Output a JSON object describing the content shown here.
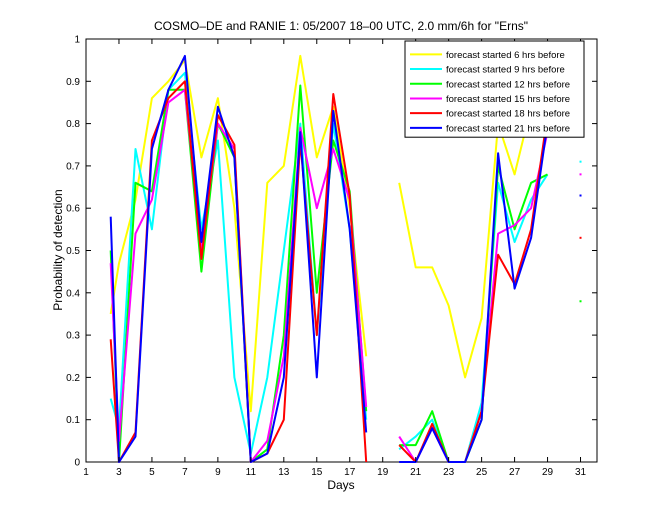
{
  "chart_data": {
    "type": "line",
    "title": "COSMO–DE and RANIE 1: 05/2007 18–00 UTC, 2.0 mm/6h for \"Erns\"",
    "xlabel": "Days",
    "ylabel": "Probability of detection",
    "xlim": [
      1,
      32
    ],
    "ylim": [
      0,
      1
    ],
    "xticks": [
      1,
      3,
      5,
      7,
      9,
      11,
      13,
      15,
      17,
      19,
      21,
      23,
      25,
      27,
      29,
      31
    ],
    "yticks": [
      0,
      0.1,
      0.2,
      0.3,
      0.4,
      0.5,
      0.6,
      0.7,
      0.8,
      0.9,
      1
    ],
    "legend_position": "top-right",
    "series": [
      {
        "name": "forecast started 6 hrs before",
        "color": "#ffff00",
        "x": [
          2.5,
          3,
          4,
          5,
          6,
          7,
          8,
          9,
          10,
          11,
          12,
          13,
          14,
          15,
          16,
          17,
          18,
          null,
          20,
          21,
          22,
          23,
          24,
          25,
          26,
          27,
          28,
          29
        ],
        "y": [
          0.35,
          0.47,
          0.62,
          0.86,
          0.9,
          0.95,
          0.72,
          0.86,
          0.6,
          0.12,
          0.66,
          0.7,
          0.96,
          0.72,
          0.84,
          0.6,
          0.25,
          null,
          0.66,
          0.46,
          0.46,
          0.37,
          0.2,
          0.34,
          0.8,
          0.68,
          0.84,
          0.9
        ],
        "isolated": {
          "x": 31,
          "y": 0.97
        }
      },
      {
        "name": "forecast started 9 hrs before",
        "color": "#00ffff",
        "x": [
          2.5,
          3,
          4,
          5,
          6,
          7,
          8,
          9,
          10,
          11,
          12,
          13,
          14,
          15,
          16,
          17,
          18,
          null,
          20,
          21,
          22,
          23,
          24,
          25,
          26,
          27,
          28,
          29
        ],
        "y": [
          0.15,
          0.08,
          0.74,
          0.55,
          0.88,
          0.92,
          0.55,
          0.76,
          0.2,
          0.02,
          0.2,
          0.5,
          0.8,
          0.3,
          0.8,
          0.55,
          0.1,
          null,
          0.03,
          0.06,
          0.1,
          0.0,
          0.0,
          0.14,
          0.66,
          0.52,
          0.62,
          0.68
        ],
        "isolated": {
          "x": 31,
          "y": 0.71
        }
      },
      {
        "name": "forecast started 12 hrs before",
        "color": "#00ff00",
        "x": [
          2.5,
          3,
          4,
          5,
          6,
          7,
          8,
          9,
          10,
          11,
          12,
          13,
          14,
          15,
          16,
          17,
          18,
          null,
          20,
          21,
          22,
          23,
          24,
          25,
          26,
          27,
          28,
          29
        ],
        "y": [
          0.5,
          0.0,
          0.66,
          0.64,
          0.88,
          0.88,
          0.45,
          0.8,
          0.72,
          0.0,
          0.03,
          0.3,
          0.89,
          0.4,
          0.76,
          0.64,
          0.12,
          null,
          0.04,
          0.04,
          0.12,
          0.0,
          0.0,
          0.1,
          0.7,
          0.55,
          0.66,
          0.68
        ],
        "isolated": {
          "x": 31,
          "y": 0.38
        }
      },
      {
        "name": "forecast started 15 hrs before",
        "color": "#ff00ff",
        "x": [
          2.5,
          3,
          4,
          5,
          6,
          7,
          8,
          9,
          10,
          11,
          12,
          13,
          14,
          15,
          16,
          17,
          18,
          null,
          20,
          21,
          22,
          23,
          24,
          25,
          26,
          27,
          28,
          29
        ],
        "y": [
          0.47,
          0.05,
          0.54,
          0.62,
          0.85,
          0.88,
          0.5,
          0.8,
          0.74,
          0.0,
          0.05,
          0.25,
          0.79,
          0.6,
          0.74,
          0.62,
          0.13,
          null,
          0.06,
          0.0,
          0.08,
          0.0,
          0.0,
          0.12,
          0.54,
          0.56,
          0.6,
          0.78
        ],
        "isolated": {
          "x": 31,
          "y": 0.68
        }
      },
      {
        "name": "forecast started 18 hrs before",
        "color": "#ff0000",
        "x": [
          2.5,
          3,
          4,
          5,
          6,
          7,
          8,
          9,
          10,
          11,
          12,
          13,
          14,
          15,
          16,
          17,
          18,
          null,
          20,
          21,
          22,
          23,
          24,
          25,
          26,
          27,
          28,
          29
        ],
        "y": [
          0.29,
          0.0,
          0.07,
          0.76,
          0.86,
          0.9,
          0.48,
          0.82,
          0.75,
          0.0,
          0.02,
          0.1,
          0.76,
          0.3,
          0.87,
          0.63,
          0.0,
          null,
          0.04,
          0.0,
          0.09,
          0.0,
          0.0,
          0.12,
          0.49,
          0.42,
          0.55,
          0.82
        ],
        "isolated": {
          "x": 31,
          "y": 0.53
        }
      },
      {
        "name": "forecast started 21 hrs before",
        "color": "#0000ff",
        "x": [
          2.5,
          3,
          4,
          5,
          6,
          7,
          8,
          9,
          10,
          11,
          12,
          13,
          14,
          15,
          16,
          17,
          18,
          null,
          20,
          21,
          22,
          23,
          24,
          25,
          26,
          27,
          28,
          29
        ],
        "y": [
          0.58,
          0.0,
          0.06,
          0.74,
          0.88,
          0.96,
          0.52,
          0.84,
          0.72,
          0.0,
          0.02,
          0.2,
          0.78,
          0.2,
          0.83,
          0.55,
          0.07,
          null,
          0.0,
          0.0,
          0.08,
          0.0,
          0.0,
          0.1,
          0.73,
          0.41,
          0.53,
          0.8
        ],
        "isolated": {
          "x": 31,
          "y": 0.63
        }
      }
    ]
  }
}
